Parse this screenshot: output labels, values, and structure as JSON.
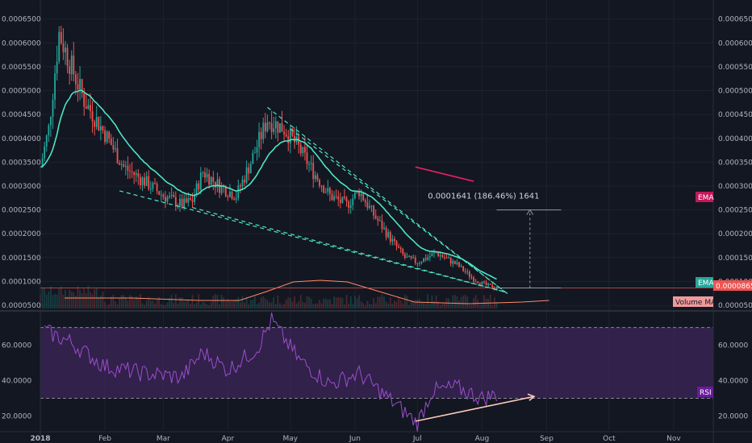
{
  "chart_data": [
    {
      "type": "candlestick",
      "panel": "price",
      "y_axis": {
        "range": [
          4e-05,
          0.00069
        ],
        "tick_labels": [
          "0.0000500",
          "0.0001000",
          "0.0001500",
          "0.0002000",
          "0.0002500",
          "0.0003000",
          "0.0003500",
          "0.0004000",
          "0.0004500",
          "0.0005000",
          "0.0005500",
          "0.0006000",
          "0.0006500"
        ]
      },
      "x_axis": {
        "tick_labels": [
          "2018",
          "Feb",
          "Mar",
          "Apr",
          "May",
          "Jun",
          "Jul",
          "Aug",
          "Sep",
          "Oct",
          "Nov"
        ]
      },
      "price_key_points": [
        {
          "date": "2018-01-01",
          "close": 0.00034
        },
        {
          "date": "2018-01-05",
          "close": 0.00042
        },
        {
          "date": "2018-01-10",
          "close": 0.00062
        },
        {
          "date": "2018-01-15",
          "close": 0.00056
        },
        {
          "date": "2018-01-22",
          "close": 0.00048
        },
        {
          "date": "2018-02-01",
          "close": 0.00041
        },
        {
          "date": "2018-02-10",
          "close": 0.00034
        },
        {
          "date": "2018-02-20",
          "close": 0.00031
        },
        {
          "date": "2018-03-01",
          "close": 0.00028
        },
        {
          "date": "2018-03-10",
          "close": 0.00026
        },
        {
          "date": "2018-03-15",
          "close": 0.00027
        },
        {
          "date": "2018-03-20",
          "close": 0.00033
        },
        {
          "date": "2018-03-28",
          "close": 0.0003
        },
        {
          "date": "2018-04-05",
          "close": 0.00028
        },
        {
          "date": "2018-04-12",
          "close": 0.00035
        },
        {
          "date": "2018-04-20",
          "close": 0.00044
        },
        {
          "date": "2018-04-28",
          "close": 0.00042
        },
        {
          "date": "2018-05-05",
          "close": 0.00038
        },
        {
          "date": "2018-05-12",
          "close": 0.00033
        },
        {
          "date": "2018-05-20",
          "close": 0.00028
        },
        {
          "date": "2018-05-28",
          "close": 0.00026
        },
        {
          "date": "2018-06-03",
          "close": 0.00029
        },
        {
          "date": "2018-06-10",
          "close": 0.00024
        },
        {
          "date": "2018-06-18",
          "close": 0.00019
        },
        {
          "date": "2018-06-25",
          "close": 0.00015
        },
        {
          "date": "2018-07-01",
          "close": 0.00014
        },
        {
          "date": "2018-07-10",
          "close": 0.00016
        },
        {
          "date": "2018-07-20",
          "close": 0.000135
        },
        {
          "date": "2018-07-28",
          "close": 0.000105
        },
        {
          "date": "2018-08-03",
          "close": 9.2e-05
        },
        {
          "date": "2018-08-08",
          "close": 8.65e-05
        }
      ],
      "series": [
        {
          "name": "EMA",
          "color": "#4de6c2"
        },
        {
          "name": "Volume MA",
          "color": "#ff8a65"
        }
      ],
      "current_price": "0.0000865",
      "measure_label": "0.0001641 (186.46%) 1641",
      "colors": {
        "up": "#26a69a",
        "down": "#ef5350",
        "ema": "#4de6c2",
        "trendline": "#4de6c2",
        "volume_ma": "#ff8a65",
        "price_line": "#ef5350"
      }
    },
    {
      "type": "line",
      "panel": "rsi",
      "y_axis": {
        "range": [
          12,
          78
        ],
        "tick_labels": [
          "20.0000",
          "40.0000",
          "60.0000"
        ],
        "bands": [
          30,
          70
        ]
      },
      "series": [
        {
          "name": "RSI",
          "color": "#9c4dcc"
        }
      ],
      "rsi_key_points": [
        {
          "date": "2018-01-03",
          "value": 68
        },
        {
          "date": "2018-01-15",
          "value": 62
        },
        {
          "date": "2018-02-01",
          "value": 48
        },
        {
          "date": "2018-02-20",
          "value": 44
        },
        {
          "date": "2018-03-10",
          "value": 42
        },
        {
          "date": "2018-03-20",
          "value": 56
        },
        {
          "date": "2018-04-01",
          "value": 46
        },
        {
          "date": "2018-04-15",
          "value": 58
        },
        {
          "date": "2018-04-22",
          "value": 74
        },
        {
          "date": "2018-05-05",
          "value": 52
        },
        {
          "date": "2018-05-20",
          "value": 38
        },
        {
          "date": "2018-06-03",
          "value": 44
        },
        {
          "date": "2018-06-15",
          "value": 32
        },
        {
          "date": "2018-06-27",
          "value": 20
        },
        {
          "date": "2018-07-01",
          "value": 16
        },
        {
          "date": "2018-07-08",
          "value": 34
        },
        {
          "date": "2018-07-20",
          "value": 36
        },
        {
          "date": "2018-08-01",
          "value": 30
        },
        {
          "date": "2018-08-08",
          "value": 32
        }
      ],
      "colors": {
        "rsi": "#9c4dcc",
        "band_fill": "#4a2a6e"
      }
    }
  ],
  "tags": {
    "ema": "EMA",
    "ema2": "EMA",
    "price": "0.0000865",
    "volume_ma": "Volume MA",
    "rsi": "RSI"
  }
}
